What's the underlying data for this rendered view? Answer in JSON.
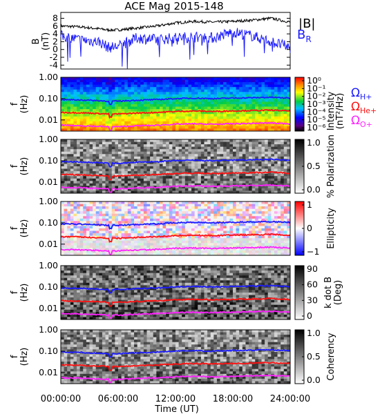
{
  "title": "ACE Mag 2015-148",
  "colors": {
    "bmag": "#000000",
    "br": "#1a1aff",
    "h_plus": "#1a1aff",
    "he_plus": "#ff1010",
    "o_plus": "#ff22ff"
  },
  "panels": {
    "b": {
      "ylabel_line1": "B",
      "ylabel_line2": "(nT)",
      "yticks": [
        "8",
        "6",
        "4",
        "2",
        "0",
        "-2",
        "-4"
      ],
      "legend_bmag": "|B|",
      "legend_br": "B",
      "legend_br_sub": "R"
    },
    "freq_ylabel_line1": "f",
    "freq_ylabel_line2": "(Hz)",
    "freq_yticks": [
      "1.00",
      "0.10",
      "0.01"
    ],
    "intensity": {
      "cbar_label": "Intensity",
      "cbar_unit": "(nT²/Hz)",
      "cbar_ticks": [
        "10⁰",
        "10⁻¹",
        "10⁻²",
        "10⁻³",
        "10⁻⁴",
        "10⁻⁵",
        "10⁻⁶"
      ],
      "legend_h": "Ω",
      "legend_h_sub": "H+",
      "legend_he": "Ω",
      "legend_he_sub": "He+",
      "legend_o": "Ω",
      "legend_o_sub": "O+"
    },
    "polarization": {
      "cbar_label": "% Polarization",
      "cbar_ticks": [
        "1.0",
        "0.5",
        "0.0"
      ]
    },
    "ellipticity": {
      "cbar_label": "Ellipticity",
      "cbar_ticks": [
        "1",
        "0",
        "−1"
      ]
    },
    "kdotb": {
      "cbar_label_line1": "k dot B",
      "cbar_label_line2": "(Deg)",
      "cbar_ticks": [
        "90",
        "60",
        "30",
        "0"
      ]
    },
    "coherency": {
      "cbar_label": "Coherency",
      "cbar_ticks": [
        "1.0",
        "0.5",
        "0.0"
      ]
    }
  },
  "xaxis": {
    "label": "Time (UT)",
    "ticks": [
      "00:00:00",
      "06:00:00",
      "12:00:00",
      "18:00:00",
      "24:00:00"
    ]
  },
  "chart_data": [
    {
      "type": "line",
      "panel": "magnetic field",
      "xlabel": "",
      "ylabel": "B (nT)",
      "x_hours": [
        0,
        2,
        4,
        5,
        6,
        8,
        10,
        12,
        14,
        16,
        18,
        20,
        22,
        24
      ],
      "ylim": [
        -5,
        9.5
      ],
      "series": [
        {
          "name": "|B|",
          "values": [
            6.0,
            5.8,
            5.3,
            5.0,
            5.0,
            5.5,
            6.0,
            6.8,
            7.2,
            7.0,
            7.2,
            7.5,
            8.0,
            7.0
          ]
        },
        {
          "name": "B_R",
          "values": [
            3.5,
            2.5,
            2.0,
            0.5,
            0.8,
            3.0,
            2.5,
            3.0,
            3.2,
            3.0,
            4.5,
            3.5,
            2.0,
            0.5
          ]
        }
      ]
    },
    {
      "type": "line",
      "panel": "ion gyrofrequencies (overlaid on all spectrogram panels)",
      "xlabel": "Time (UT)",
      "ylabel": "f (Hz)",
      "yscale": "log",
      "ylim": [
        0.003,
        1.0
      ],
      "x_hours": [
        0,
        2,
        4,
        5,
        6,
        8,
        10,
        12,
        14,
        16,
        18,
        20,
        22,
        24
      ],
      "series": [
        {
          "name": "ΩH+",
          "values": [
            0.09,
            0.087,
            0.08,
            0.076,
            0.076,
            0.084,
            0.09,
            0.1,
            0.105,
            0.1,
            0.106,
            0.11,
            0.115,
            0.105
          ]
        },
        {
          "name": "ΩHe+",
          "values": [
            0.0225,
            0.0218,
            0.02,
            0.019,
            0.019,
            0.021,
            0.0225,
            0.025,
            0.0262,
            0.025,
            0.0265,
            0.0275,
            0.0288,
            0.0262
          ]
        },
        {
          "name": "ΩO+",
          "values": [
            0.0056,
            0.0054,
            0.005,
            0.0048,
            0.0048,
            0.0053,
            0.0056,
            0.0063,
            0.0066,
            0.0063,
            0.0066,
            0.0069,
            0.0072,
            0.0066
          ]
        }
      ]
    }
  ]
}
